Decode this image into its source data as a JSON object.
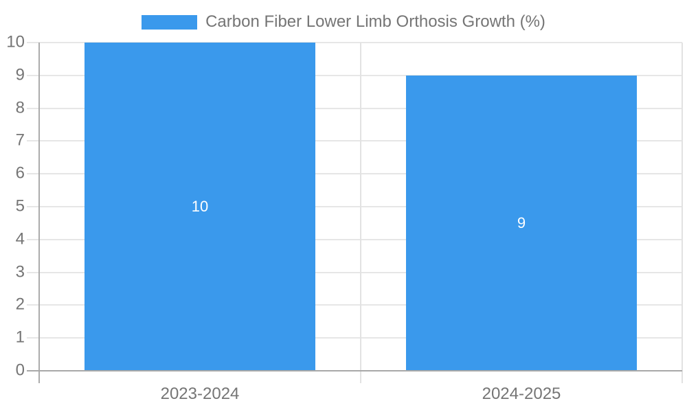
{
  "chart_data": {
    "type": "bar",
    "title": "Carbon Fiber Lower Limb Orthosis Growth (%)",
    "categories": [
      "2023-2024",
      "2024-2025"
    ],
    "values": [
      10,
      9
    ],
    "series": [
      {
        "name": "Carbon Fiber Lower Limb Orthosis Growth (%)",
        "values": [
          10,
          9
        ]
      }
    ],
    "xlabel": "",
    "ylabel": "",
    "ylim": [
      0,
      10
    ],
    "y_ticks": [
      0,
      1,
      2,
      3,
      4,
      5,
      6,
      7,
      8,
      9,
      10
    ],
    "grid": "horizontal gridlines on, category boundary verticals on",
    "legend_position": "top-center",
    "bar_labels": [
      "10",
      "9"
    ]
  },
  "colors": {
    "bar": "#3a99ec",
    "bar_label_text": "#ffffff",
    "axis_text": "#757575",
    "gridline": "#e6e6e6",
    "baseline": "#a8a8a8",
    "axis_line": "#ababab",
    "boundary_line": "#e2e2e2",
    "background": "#ffffff"
  }
}
